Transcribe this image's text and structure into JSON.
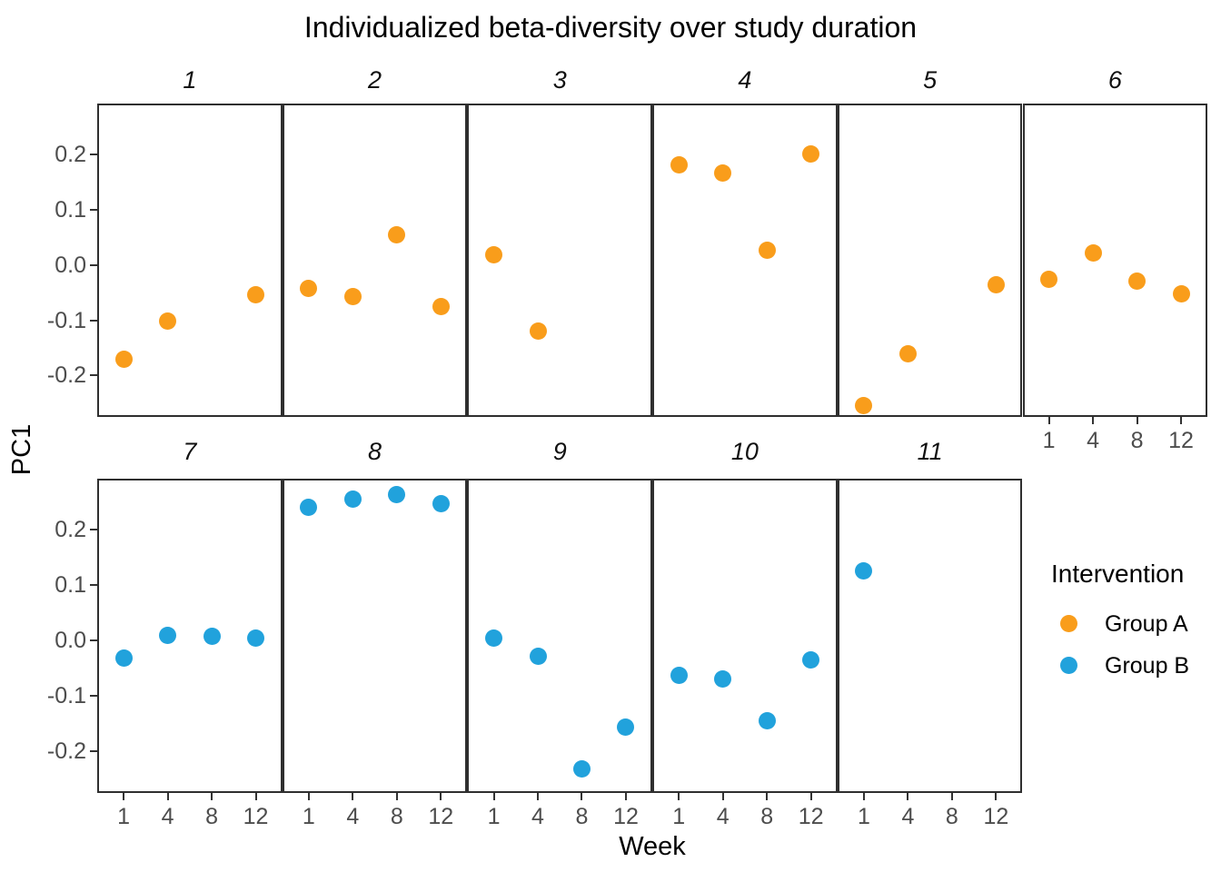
{
  "title": "Individualized beta-diversity over study duration",
  "chart_data": {
    "type": "scatter",
    "title": "Individualized beta-diversity over study duration",
    "xlabel": "Week",
    "ylabel": "PC1",
    "x_categories": [
      1,
      4,
      8,
      12
    ],
    "x_tick_labels": [
      "1",
      "4",
      "8",
      "12"
    ],
    "y_ticks": [
      0.2,
      0.1,
      0.0,
      -0.1,
      -0.2
    ],
    "y_tick_labels": [
      "0.2",
      "0.1",
      "0.0",
      "-0.1",
      "-0.2"
    ],
    "ylim": [
      -0.275,
      0.292
    ],
    "grid": false,
    "legend_position": "right",
    "legend": {
      "title": "Intervention",
      "entries": [
        {
          "label": "Group A",
          "color": "#F99D1B"
        },
        {
          "label": "Group B",
          "color": "#21A2DC"
        }
      ]
    },
    "series_colors": {
      "Group A": "#F99D1B",
      "Group B": "#21A2DC"
    },
    "facet_rows": [
      [
        "1",
        "2",
        "3",
        "4",
        "5",
        "6"
      ],
      [
        "7",
        "8",
        "9",
        "10",
        "11"
      ]
    ],
    "facets": [
      {
        "label": "1",
        "group": "Group A",
        "points": [
          [
            1,
            -0.17
          ],
          [
            4,
            -0.102
          ],
          [
            12,
            -0.054
          ]
        ]
      },
      {
        "label": "2",
        "group": "Group A",
        "points": [
          [
            1,
            -0.042
          ],
          [
            4,
            -0.057
          ],
          [
            8,
            0.054
          ],
          [
            12,
            -0.075
          ]
        ]
      },
      {
        "label": "3",
        "group": "Group A",
        "points": [
          [
            1,
            0.019
          ],
          [
            4,
            -0.12
          ]
        ]
      },
      {
        "label": "4",
        "group": "Group A",
        "points": [
          [
            1,
            0.181
          ],
          [
            4,
            0.166
          ],
          [
            8,
            0.026
          ],
          [
            12,
            0.201
          ]
        ]
      },
      {
        "label": "5",
        "group": "Group A",
        "points": [
          [
            1,
            -0.255
          ],
          [
            4,
            -0.16
          ],
          [
            12,
            -0.036
          ]
        ]
      },
      {
        "label": "6",
        "group": "Group A",
        "points": [
          [
            1,
            -0.026
          ],
          [
            4,
            0.021
          ],
          [
            8,
            -0.03
          ],
          [
            12,
            -0.053
          ]
        ]
      },
      {
        "label": "7",
        "group": "Group B",
        "points": [
          [
            1,
            -0.031
          ],
          [
            4,
            0.009
          ],
          [
            8,
            0.008
          ],
          [
            12,
            0.004
          ]
        ]
      },
      {
        "label": "8",
        "group": "Group B",
        "points": [
          [
            1,
            0.241
          ],
          [
            4,
            0.255
          ],
          [
            8,
            0.264
          ],
          [
            12,
            0.247
          ]
        ]
      },
      {
        "label": "9",
        "group": "Group B",
        "points": [
          [
            1,
            0.004
          ],
          [
            4,
            -0.029
          ],
          [
            8,
            -0.231
          ],
          [
            12,
            -0.157
          ]
        ]
      },
      {
        "label": "10",
        "group": "Group B",
        "points": [
          [
            1,
            -0.063
          ],
          [
            4,
            -0.069
          ],
          [
            8,
            -0.145
          ],
          [
            12,
            -0.035
          ]
        ]
      },
      {
        "label": "11",
        "group": "Group B",
        "points": [
          [
            1,
            0.126
          ]
        ]
      }
    ]
  }
}
